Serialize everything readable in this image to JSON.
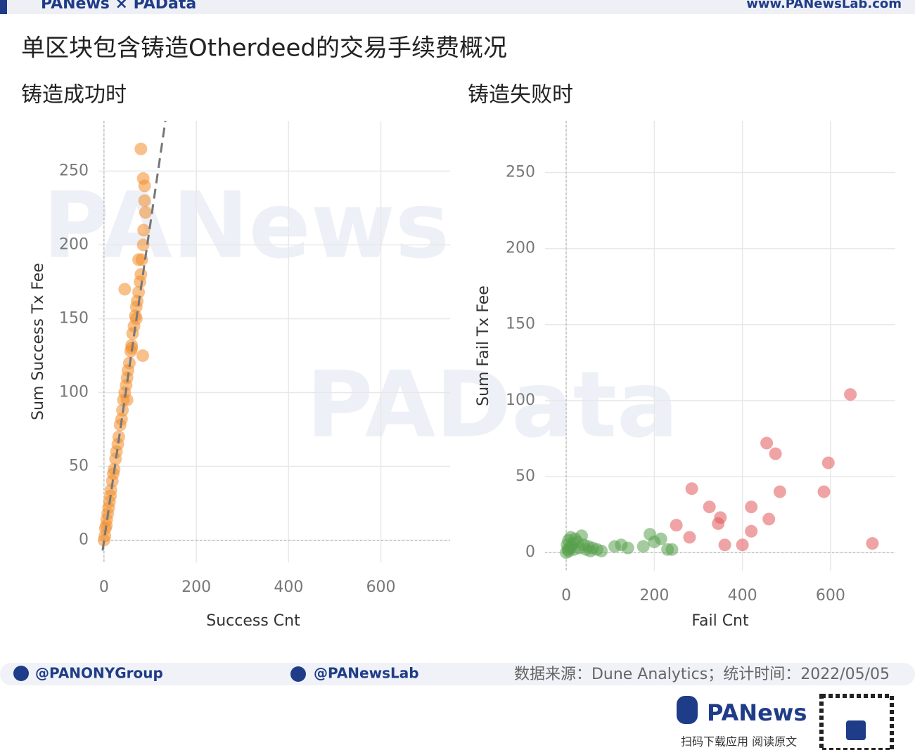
{
  "header": {
    "brand": "PANews × PAData",
    "site": "www.PANewsLab.com"
  },
  "title": "单区块包含铸造Otherdeed的交易手续费概况",
  "watermarks": [
    "PANews",
    "PAData"
  ],
  "chart_data": [
    {
      "type": "scatter",
      "title": "铸造成功时",
      "x_label": "Success Cnt",
      "y_label": "Sum Success Tx Fee",
      "xlim": [
        -12,
        750
      ],
      "ylim": [
        -15,
        284
      ],
      "xticks": [
        0,
        200,
        400,
        600
      ],
      "yticks": [
        0,
        50,
        100,
        150,
        200,
        250
      ],
      "grid": true,
      "zero_lines": true,
      "series": [
        {
          "color": "#f28e2b",
          "x": [
            0,
            2,
            3,
            5,
            6,
            8,
            10,
            12,
            14,
            15,
            18,
            20,
            22,
            25,
            27,
            30,
            32,
            35,
            38,
            40,
            42,
            45,
            48,
            50,
            52,
            55,
            58,
            60,
            62,
            65,
            68,
            70,
            72,
            75,
            78,
            80,
            82,
            85,
            88,
            90,
            85,
            80,
            75,
            70,
            60,
            50,
            45,
            86,
            88,
            84
          ],
          "values": [
            0,
            3,
            8,
            10,
            14,
            18,
            22,
            26,
            30,
            34,
            40,
            45,
            48,
            55,
            60,
            65,
            70,
            78,
            82,
            88,
            95,
            100,
            105,
            110,
            115,
            120,
            128,
            132,
            140,
            145,
            152,
            158,
            162,
            168,
            175,
            180,
            190,
            200,
            230,
            222,
            245,
            265,
            190,
            150,
            130,
            95,
            170,
            210,
            240,
            125
          ]
        }
      ],
      "trendline": {
        "color": "#777777",
        "x": [
          -3,
          133
        ],
        "y": [
          -7,
          284
        ]
      }
    },
    {
      "type": "scatter",
      "title": "铸造失败时",
      "x_label": "Fail Cnt",
      "y_label": "Sum Fail Tx Fee",
      "xlim": [
        -48,
        747
      ],
      "ylim": [
        -12,
        284
      ],
      "xticks": [
        0,
        200,
        400,
        600
      ],
      "yticks": [
        0,
        50,
        100,
        150,
        200,
        250
      ],
      "grid": true,
      "zero_lines": true,
      "series": [
        {
          "color": "#59a14f",
          "x": [
            0,
            2,
            4,
            5,
            6,
            8,
            10,
            12,
            15,
            18,
            20,
            25,
            30,
            35,
            40,
            45,
            50,
            55,
            60,
            70,
            80,
            110,
            125,
            140,
            175,
            190,
            200,
            215,
            230,
            240
          ],
          "values": [
            0,
            5,
            2,
            8,
            1,
            3,
            10,
            4,
            6,
            2,
            9,
            7,
            3,
            11,
            5,
            2,
            4,
            1,
            3,
            2,
            1,
            4,
            5,
            3,
            4,
            12,
            7,
            9,
            2,
            2
          ]
        },
        {
          "color": "#e15759",
          "x": [
            250,
            285,
            280,
            325,
            345,
            350,
            360,
            400,
            420,
            420,
            455,
            460,
            475,
            485,
            585,
            595,
            645,
            695
          ],
          "values": [
            18,
            42,
            10,
            30,
            19,
            23,
            5,
            5,
            30,
            14,
            72,
            22,
            65,
            40,
            40,
            59,
            104,
            6
          ]
        }
      ]
    }
  ],
  "footer": {
    "twitter": "@PANONYGroup",
    "facebook": "@PANewsLab",
    "source": "数据来源：Dune Analytics；统计时间：2022/05/05",
    "logo": "PANews",
    "qr_caption": "扫码下载应用 阅读原文"
  }
}
